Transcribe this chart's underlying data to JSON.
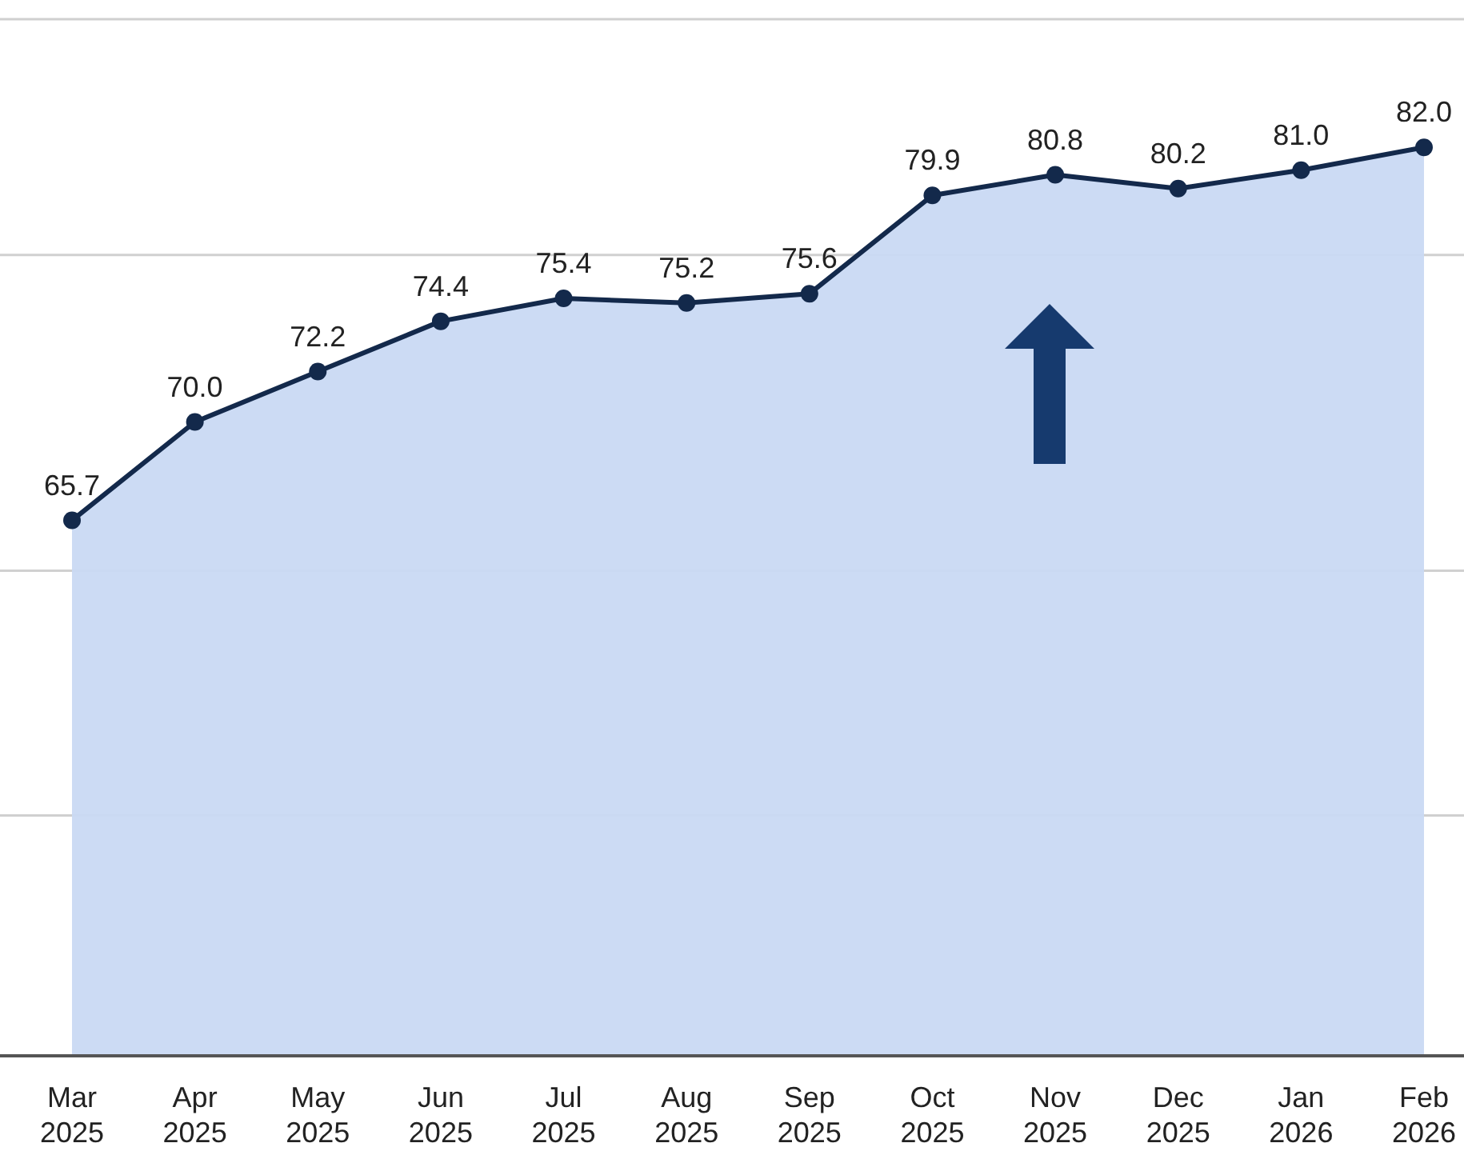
{
  "chart_data": {
    "type": "area",
    "categories": [
      "Mar 2025",
      "Apr 2025",
      "May 2025",
      "Jun 2025",
      "Jul 2025",
      "Aug 2025",
      "Sep 2025",
      "Oct 2025",
      "Nov 2025",
      "Dec 2025",
      "Jan 2026",
      "Feb 2026"
    ],
    "series": [
      {
        "color": "#13294b",
        "values": [
          65.7,
          70.0,
          72.2,
          74.4,
          75.4,
          75.2,
          75.6,
          79.9,
          80.8,
          80.2,
          81.0,
          82.0
        ],
        "value_labels": [
          "65.7",
          "70.0",
          "72.2",
          "74.4",
          "75.4",
          "75.2",
          "75.6",
          "79.9",
          "80.8",
          "80.2",
          "81.0",
          "82.0"
        ]
      }
    ],
    "ylim": [
      42.3,
      87.6
    ],
    "yticks": [
      {
        "value": 52.8,
        "label": null
      },
      {
        "value": 63.5,
        "label": null
      },
      {
        "value": 77.3,
        "label": null
      },
      {
        "value": 87.6,
        "label": null
      }
    ],
    "grid": "y",
    "marker": "circle",
    "line_style": "solid",
    "tick_labels": "x"
  }
}
